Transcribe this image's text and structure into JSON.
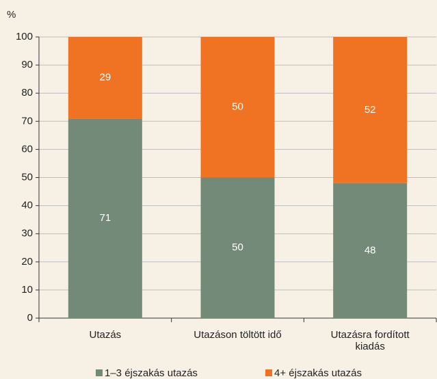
{
  "chart_data": {
    "type": "bar",
    "stacked": true,
    "y_label": "%",
    "categories": [
      "Utazás",
      "Utazáson töltött idő",
      "Utazásra fordított kiadás"
    ],
    "series": [
      {
        "name": "1–3 éjszakás utazás",
        "color": "#738a78",
        "values": [
          71,
          50,
          48
        ]
      },
      {
        "name": "4+ éjszakás utazás",
        "color": "#f07323",
        "values": [
          29,
          50,
          52
        ]
      }
    ],
    "ylim": [
      0,
      100
    ],
    "yticks": [
      0,
      10,
      20,
      30,
      40,
      50,
      60,
      70,
      80,
      90,
      100
    ],
    "grid": true
  }
}
